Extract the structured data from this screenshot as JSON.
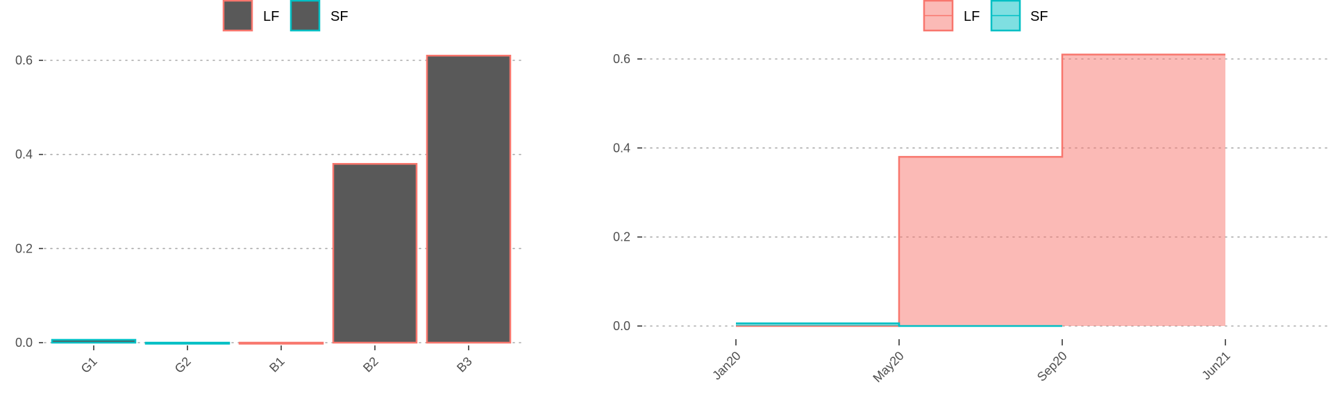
{
  "colors": {
    "LF": "#F8766D",
    "SF": "#00BFC4",
    "bar_fill": "#595959",
    "lf_area": "#F8766D",
    "sf_area": "#00BFC4"
  },
  "chart_data": [
    {
      "type": "bar",
      "legend": {
        "position": "top",
        "entries": [
          "LF",
          "SF"
        ]
      },
      "categories": [
        "G1",
        "G2",
        "B1",
        "B2",
        "B3"
      ],
      "bar_outline_series": [
        "SF",
        "SF",
        "LF",
        "LF",
        "LF"
      ],
      "values": [
        0.006,
        0.0,
        0.0,
        0.38,
        0.61
      ],
      "y_ticks": [
        0.0,
        0.2,
        0.4,
        0.6
      ],
      "y_tick_labels": [
        "0.0",
        "0.2",
        "0.4",
        "0.6"
      ],
      "ylim": [
        0,
        0.61
      ],
      "grid": "horizontal-dotted"
    },
    {
      "type": "area",
      "step": true,
      "legend": {
        "position": "top",
        "entries": [
          "LF",
          "SF"
        ]
      },
      "x_tick_labels": [
        "Jan20",
        "May20",
        "Sep20",
        "Jun21"
      ],
      "series": [
        {
          "name": "LF",
          "x": [
            "Jan20",
            "May20",
            "Sep20",
            "Jun21"
          ],
          "values": [
            0.0,
            0.38,
            0.61,
            0.61
          ]
        },
        {
          "name": "SF",
          "x": [
            "Jan20",
            "May20",
            "Sep20"
          ],
          "values": [
            0.006,
            0.0,
            0.0
          ]
        }
      ],
      "y_ticks": [
        0.0,
        0.2,
        0.4,
        0.6
      ],
      "y_tick_labels": [
        "0.0",
        "0.2",
        "0.4",
        "0.6"
      ],
      "ylim": [
        0,
        0.61
      ],
      "grid": "horizontal-dotted"
    }
  ]
}
